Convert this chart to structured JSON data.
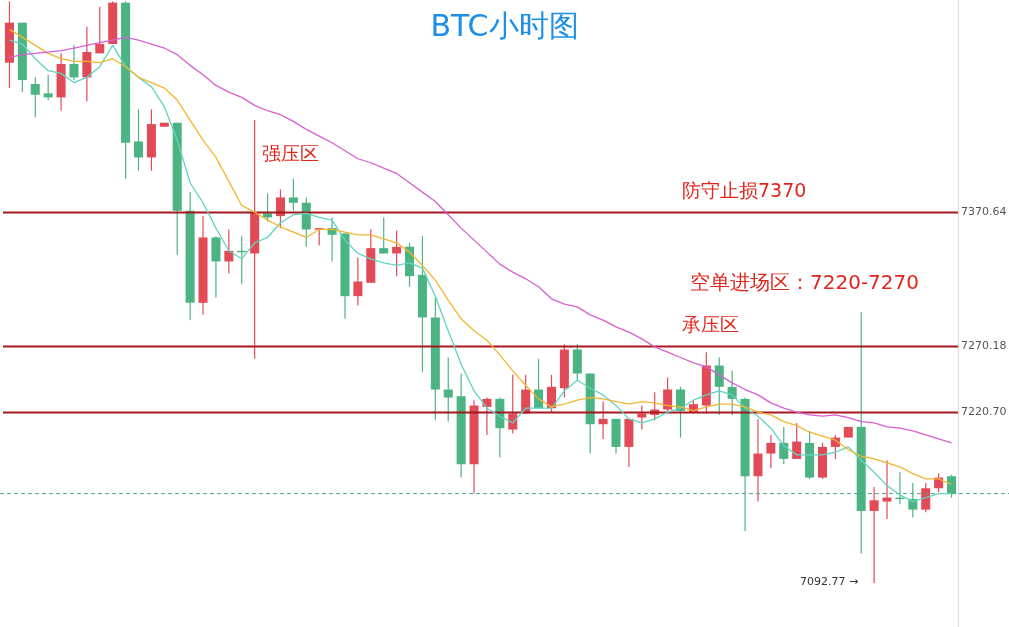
{
  "chart_data": {
    "type": "candlestick",
    "title": "BTC小时图",
    "categories": [
      null,
      null,
      null,
      null,
      null,
      null,
      null,
      null,
      null,
      null,
      null,
      null,
      null,
      null,
      null,
      null,
      null,
      null,
      null,
      null,
      null,
      null,
      null,
      null,
      null,
      null,
      null,
      null,
      null,
      null,
      null,
      null,
      null,
      null,
      null,
      null,
      null,
      null,
      null,
      null,
      null,
      null,
      null,
      null,
      null,
      null,
      null,
      null,
      null,
      null,
      null,
      null,
      null,
      null,
      null,
      null,
      null,
      null,
      null,
      null,
      null,
      null,
      null,
      null,
      null,
      null,
      null,
      null,
      null,
      null,
      null,
      null,
      null,
      null
    ],
    "ohlc": [
      [
        7483,
        7529,
        7464,
        7513
      ],
      [
        7513,
        7513,
        7461,
        7470
      ],
      [
        7467,
        7472,
        7442,
        7459
      ],
      [
        7460,
        7474,
        7455,
        7457
      ],
      [
        7457,
        7490,
        7447,
        7482
      ],
      [
        7482,
        7496,
        7470,
        7472
      ],
      [
        7472,
        7510,
        7454,
        7491
      ],
      [
        7490,
        7525,
        7490,
        7497
      ],
      [
        7497,
        7529,
        7497,
        7528
      ],
      [
        7528,
        7529,
        7396,
        7423
      ],
      [
        7424,
        7448,
        7402,
        7412
      ],
      [
        7412,
        7448,
        7402,
        7437
      ],
      [
        7435,
        7438,
        7435,
        7438
      ],
      [
        7438,
        7438,
        7339,
        7372
      ],
      [
        7372,
        7386,
        7290,
        7303
      ],
      [
        7303,
        7368,
        7294,
        7352
      ],
      [
        7352,
        7353,
        7307,
        7334
      ],
      [
        7334,
        7358,
        7325,
        7342
      ],
      [
        7342,
        7353,
        7317,
        7341
      ],
      [
        7340,
        7440,
        7261,
        7371
      ],
      [
        7370,
        7385,
        7364,
        7367
      ],
      [
        7368,
        7388,
        7359,
        7382
      ],
      [
        7382,
        7396,
        7372,
        7378
      ],
      [
        7378,
        7382,
        7345,
        7358
      ],
      [
        7358,
        7359,
        7346,
        7359
      ],
      [
        7359,
        7367,
        7334,
        7354
      ],
      [
        7355,
        7355,
        7291,
        7308
      ],
      [
        7308,
        7337,
        7301,
        7319
      ],
      [
        7318,
        7358,
        7318,
        7344
      ],
      [
        7344,
        7367,
        7340,
        7340
      ],
      [
        7340,
        7357,
        7323,
        7345
      ],
      [
        7345,
        7348,
        7315,
        7323
      ],
      [
        7324,
        7353,
        7251,
        7292
      ],
      [
        7292,
        7307,
        7215,
        7238
      ],
      [
        7238,
        7262,
        7214,
        7232
      ],
      [
        7233,
        7250,
        7172,
        7182
      ],
      [
        7182,
        7230,
        7160,
        7226
      ],
      [
        7225,
        7232,
        7204,
        7231
      ],
      [
        7231,
        7232,
        7187,
        7209
      ],
      [
        7208,
        7249,
        7205,
        7220
      ],
      [
        7220,
        7249,
        7220,
        7238
      ],
      [
        7238,
        7261,
        7224,
        7224
      ],
      [
        7224,
        7249,
        7221,
        7240
      ],
      [
        7239,
        7272,
        7232,
        7268
      ],
      [
        7268,
        7272,
        7245,
        7250
      ],
      [
        7250,
        7250,
        7190,
        7212
      ],
      [
        7212,
        7229,
        7201,
        7216
      ],
      [
        7216,
        7216,
        7190,
        7195
      ],
      [
        7195,
        7216,
        7180,
        7216
      ],
      [
        7217,
        7226,
        7208,
        7220
      ],
      [
        7219,
        7236,
        7215,
        7223
      ],
      [
        7223,
        7247,
        7222,
        7238
      ],
      [
        7238,
        7240,
        7202,
        7222
      ],
      [
        7221,
        7230,
        7220,
        7227
      ],
      [
        7226,
        7266,
        7220,
        7256
      ],
      [
        7256,
        7262,
        7219,
        7240
      ],
      [
        7240,
        7252,
        7219,
        7231
      ],
      [
        7231,
        7232,
        7132,
        7173
      ],
      [
        7173,
        7216,
        7154,
        7190
      ],
      [
        7190,
        7204,
        7179,
        7198
      ],
      [
        7198,
        7210,
        7182,
        7186
      ],
      [
        7186,
        7213,
        7186,
        7199
      ],
      [
        7198,
        7207,
        7171,
        7172
      ],
      [
        7172,
        7198,
        7171,
        7195
      ],
      [
        7195,
        7204,
        7186,
        7202
      ],
      [
        7202,
        7210,
        7202,
        7210
      ],
      [
        7210,
        7296,
        7115,
        7147
      ],
      [
        7147,
        7165,
        7092.77,
        7155
      ],
      [
        7154,
        7185,
        7141,
        7157
      ],
      [
        7157,
        7176,
        7152,
        7156
      ],
      [
        7156,
        7168,
        7142,
        7148
      ],
      [
        7148,
        7168,
        7146,
        7164
      ],
      [
        7164,
        7175,
        7161,
        7172
      ],
      [
        7173,
        7174,
        7157,
        7160
      ]
    ],
    "colors": [
      "#e14b57",
      "#4cb483",
      "#4cb483",
      "#4cb483",
      "#e14b57",
      "#4cb483",
      "#e14b57",
      "#e14b57",
      "#e14b57",
      "#4cb483",
      "#4cb483",
      "#e14b57",
      "#e14b57",
      "#4cb483",
      "#4cb483",
      "#e14b57",
      "#4cb483",
      "#e14b57",
      "#4cb483",
      "#e14b57",
      "#4cb483",
      "#e14b57",
      "#4cb483",
      "#4cb483",
      "#e14b57",
      "#4cb483",
      "#4cb483",
      "#e14b57",
      "#e14b57",
      "#4cb483",
      "#e14b57",
      "#4cb483",
      "#4cb483",
      "#4cb483",
      "#4cb483",
      "#4cb483",
      "#e14b57",
      "#e14b57",
      "#4cb483",
      "#e14b57",
      "#e14b57",
      "#4cb483",
      "#e14b57",
      "#e14b57",
      "#4cb483",
      "#4cb483",
      "#e14b57",
      "#4cb483",
      "#e14b57",
      "#e14b57",
      "#e14b57",
      "#e14b57",
      "#4cb483",
      "#e14b57",
      "#e14b57",
      "#4cb483",
      "#4cb483",
      "#4cb483",
      "#e14b57",
      "#e14b57",
      "#4cb483",
      "#e14b57",
      "#4cb483",
      "#e14b57",
      "#e14b57",
      "#e14b57",
      "#4cb483",
      "#e14b57",
      "#e14b57",
      "#4cb483",
      "#4cb483",
      "#e14b57",
      "#e14b57",
      "#4cb483"
    ],
    "series": [
      {
        "type": "line",
        "color": "#d75fd2",
        "values": [
          7487,
          7489,
          7490,
          7491,
          7492,
          7494,
          7496,
          7498,
          7500,
          7502,
          7500,
          7497,
          7494,
          7489,
          7481,
          7474,
          7466,
          7461,
          7457,
          7451,
          7447,
          7444,
          7439,
          7433,
          7428,
          7423,
          7417,
          7411,
          7408,
          7404,
          7400,
          7393,
          7386,
          7379,
          7369,
          7359,
          7350,
          7341,
          7332,
          7326,
          7321,
          7315,
          7306,
          7302,
          7300,
          7294,
          7290,
          7285,
          7281,
          7276,
          7270,
          7266,
          7262,
          7258,
          7255,
          7249,
          7243,
          7238,
          7234,
          7228,
          7224,
          7221,
          7219,
          7218,
          7219,
          7217,
          7214,
          7213,
          7210,
          7209,
          7207,
          7204,
          7201,
          7198
        ]
      },
      {
        "type": "line",
        "color": "#f3b630",
        "values": [
          7508,
          7502,
          7496,
          7490,
          7486,
          7484,
          7484,
          7483,
          7486,
          7480,
          7472,
          7468,
          7464,
          7455,
          7440,
          7425,
          7412,
          7394,
          7376,
          7371,
          7365,
          7360,
          7356,
          7352,
          7358,
          7358,
          7356,
          7354,
          7354,
          7351,
          7348,
          7341,
          7331,
          7320,
          7305,
          7291,
          7282,
          7275,
          7264,
          7252,
          7241,
          7231,
          7225,
          7227,
          7230,
          7232,
          7231,
          7229,
          7227,
          7229,
          7228,
          7226,
          7225,
          7222,
          7225,
          7227,
          7227,
          7225,
          7221,
          7219,
          7214,
          7211,
          7206,
          7203,
          7200,
          7193,
          7188,
          7186,
          7183,
          7180,
          7175,
          7171,
          7171,
          7167
        ]
      },
      {
        "type": "line",
        "color": "#62d4c2",
        "values": [
          7500,
          7497,
          7486,
          7477,
          7475,
          7468,
          7472,
          7480,
          7496,
          7480,
          7472,
          7465,
          7450,
          7425,
          7393,
          7378,
          7359,
          7342,
          7336,
          7348,
          7352,
          7363,
          7369,
          7370,
          7367,
          7365,
          7350,
          7340,
          7336,
          7333,
          7331,
          7333,
          7329,
          7308,
          7282,
          7257,
          7237,
          7224,
          7218,
          7213,
          7224,
          7224,
          7224,
          7237,
          7245,
          7239,
          7234,
          7226,
          7216,
          7213,
          7216,
          7221,
          7224,
          7230,
          7234,
          7237,
          7234,
          7224,
          7218,
          7209,
          7196,
          7189,
          7189,
          7189,
          7191,
          7195,
          7185,
          7176,
          7166,
          7159,
          7154,
          7157,
          7160,
          7160
        ]
      }
    ],
    "ylim": [
      7060,
      7530
    ],
    "yticks": [
      {
        "value": 7220.7,
        "label": "7220.70"
      },
      {
        "value": 7270.18,
        "label": "7270.18"
      },
      {
        "value": 7370.64,
        "label": "7370.64"
      }
    ],
    "tick_labels": "y",
    "ref_lines": [
      {
        "axis": "y",
        "value": 7370.64,
        "color": "#a3191f"
      },
      {
        "axis": "y",
        "value": 7270.18,
        "color": "#a3191f"
      },
      {
        "axis": "y",
        "value": 7220.7,
        "color": "#a3191f"
      },
      {
        "axis": "y",
        "value": 7160,
        "color": "#4aa58a",
        "line_style": "dashed"
      }
    ],
    "annotations": [
      "强压区",
      "防守止损7370",
      "承压区",
      "空单进场区：7220-7270",
      "7092.77 →"
    ]
  }
}
